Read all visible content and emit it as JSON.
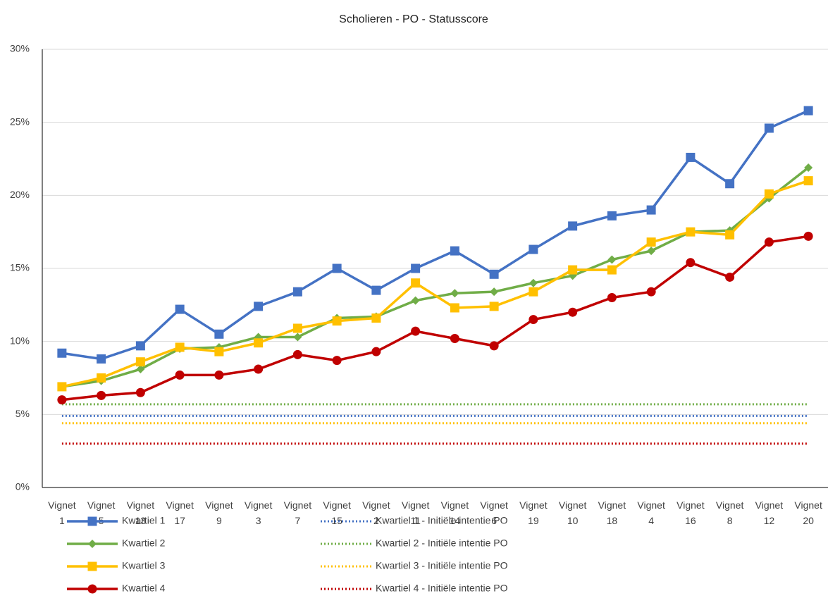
{
  "chart_data": {
    "type": "line",
    "title": "Scholieren - PO - Statusscore",
    "categories": [
      "Vignet 1",
      "Vignet 5",
      "Vignet 13",
      "Vignet 17",
      "Vignet 9",
      "Vignet 3",
      "Vignet 7",
      "Vignet 15",
      "Vignet 2",
      "Vignet 11",
      "Vignet 14",
      "Vignet 6",
      "Vignet 19",
      "Vignet 10",
      "Vignet 18",
      "Vignet 4",
      "Vignet 16",
      "Vignet 8",
      "Vignet 12",
      "Vignet 20"
    ],
    "ylim": [
      0,
      30
    ],
    "yticks": [
      {
        "value": 0,
        "label": "0%"
      },
      {
        "value": 5,
        "label": "5%"
      },
      {
        "value": 10,
        "label": "10%"
      },
      {
        "value": 15,
        "label": "15%"
      },
      {
        "value": 20,
        "label": "20%"
      },
      {
        "value": 25,
        "label": "25%"
      },
      {
        "value": 30,
        "label": "30%"
      }
    ],
    "grid": true,
    "legend": "bottom",
    "series": [
      {
        "name": "Kwartiel 1",
        "color": "#4472c4",
        "marker": "square",
        "style": "solid",
        "values": [
          9.2,
          8.8,
          9.7,
          12.2,
          10.5,
          12.4,
          13.4,
          15.0,
          13.5,
          15.0,
          16.2,
          14.6,
          16.3,
          17.9,
          18.6,
          19.0,
          22.6,
          20.8,
          24.6,
          25.8
        ]
      },
      {
        "name": "Kwartiel 2",
        "color": "#70ad47",
        "marker": "diamond",
        "style": "solid",
        "values": [
          6.9,
          7.3,
          8.1,
          9.5,
          9.6,
          10.3,
          10.3,
          11.6,
          11.7,
          12.8,
          13.3,
          13.4,
          14.0,
          14.5,
          15.6,
          16.2,
          17.5,
          17.6,
          19.8,
          21.9
        ]
      },
      {
        "name": "Kwartiel 3",
        "color": "#ffc000",
        "marker": "square",
        "style": "solid",
        "values": [
          6.9,
          7.5,
          8.6,
          9.6,
          9.3,
          9.9,
          10.9,
          11.4,
          11.6,
          14.0,
          12.3,
          12.4,
          13.4,
          14.9,
          14.9,
          16.8,
          17.5,
          17.3,
          20.1,
          21.0
        ]
      },
      {
        "name": "Kwartiel 4",
        "color": "#c00000",
        "marker": "circle",
        "style": "solid",
        "values": [
          6.0,
          6.3,
          6.5,
          7.7,
          7.7,
          8.1,
          9.1,
          8.7,
          9.3,
          10.7,
          10.2,
          9.7,
          11.5,
          12.0,
          13.0,
          13.4,
          15.4,
          14.4,
          16.8,
          17.2
        ]
      },
      {
        "name": "Kwartiel 1 - Initiële intentie PO",
        "color": "#4472c4",
        "marker": "none",
        "style": "dotted",
        "values": [
          4.9,
          4.9,
          4.9,
          4.9,
          4.9,
          4.9,
          4.9,
          4.9,
          4.9,
          4.9,
          4.9,
          4.9,
          4.9,
          4.9,
          4.9,
          4.9,
          4.9,
          4.9,
          4.9,
          4.9
        ]
      },
      {
        "name": "Kwartiel 2 - Initiële intentie PO",
        "color": "#70ad47",
        "marker": "none",
        "style": "dotted",
        "values": [
          5.7,
          5.7,
          5.7,
          5.7,
          5.7,
          5.7,
          5.7,
          5.7,
          5.7,
          5.7,
          5.7,
          5.7,
          5.7,
          5.7,
          5.7,
          5.7,
          5.7,
          5.7,
          5.7,
          5.7
        ]
      },
      {
        "name": "Kwartiel 3 - Initiële intentie PO",
        "color": "#ffc000",
        "marker": "none",
        "style": "dotted",
        "values": [
          4.4,
          4.4,
          4.4,
          4.4,
          4.4,
          4.4,
          4.4,
          4.4,
          4.4,
          4.4,
          4.4,
          4.4,
          4.4,
          4.4,
          4.4,
          4.4,
          4.4,
          4.4,
          4.4,
          4.4
        ]
      },
      {
        "name": "Kwartiel 4 - Initiële intentie PO",
        "color": "#c00000",
        "marker": "none",
        "style": "dotted",
        "values": [
          3.0,
          3.0,
          3.0,
          3.0,
          3.0,
          3.0,
          3.0,
          3.0,
          3.0,
          3.0,
          3.0,
          3.0,
          3.0,
          3.0,
          3.0,
          3.0,
          3.0,
          3.0,
          3.0,
          3.0
        ]
      }
    ]
  }
}
